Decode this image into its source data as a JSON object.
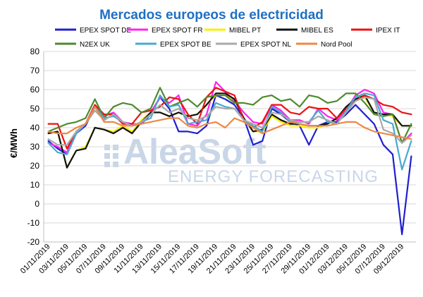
{
  "chart_data": {
    "type": "line",
    "title": "Mercados europeos de electricidad",
    "ylabel": "€/MWh",
    "xlabel": "",
    "ylim": [
      -20,
      80
    ],
    "yticks": [
      -20,
      -10,
      0,
      10,
      20,
      30,
      40,
      50,
      60,
      70,
      80
    ],
    "grid": true,
    "legend_position": "top",
    "watermark": {
      "brand": "AleaSoft",
      "tagline": "ENERGY FORECASTING",
      "color": "#c8d6e8"
    },
    "x_tick_labels": [
      "01/11/2019",
      "03/11/2019",
      "05/11/2019",
      "07/11/2019",
      "09/11/2019",
      "11/11/2019",
      "13/11/2019",
      "15/11/2019",
      "17/11/2019",
      "19/11/2019",
      "21/11/2019",
      "23/11/2019",
      "25/11/2019",
      "27/11/2019",
      "29/11/2019",
      "01/12/2019",
      "03/12/2019",
      "05/12/2019",
      "07/12/2019",
      "09/12/2019"
    ],
    "x": [
      "01/11/2019",
      "02/11/2019",
      "03/11/2019",
      "04/11/2019",
      "05/11/2019",
      "06/11/2019",
      "07/11/2019",
      "08/11/2019",
      "09/11/2019",
      "10/11/2019",
      "11/11/2019",
      "12/11/2019",
      "13/11/2019",
      "14/11/2019",
      "15/11/2019",
      "16/11/2019",
      "17/11/2019",
      "18/11/2019",
      "19/11/2019",
      "20/11/2019",
      "21/11/2019",
      "22/11/2019",
      "23/11/2019",
      "24/11/2019",
      "25/11/2019",
      "26/11/2019",
      "27/11/2019",
      "28/11/2019",
      "29/11/2019",
      "30/11/2019",
      "01/12/2019",
      "02/12/2019",
      "03/12/2019",
      "04/12/2019",
      "05/12/2019",
      "06/12/2019",
      "07/12/2019",
      "08/12/2019",
      "09/12/2019",
      "10/12/2019"
    ],
    "series": [
      {
        "name": "EPEX SPOT DE",
        "color": "#1f1fd0",
        "values": [
          33,
          29,
          26,
          37,
          41,
          51,
          44,
          47,
          43,
          41,
          42,
          47,
          56,
          50,
          38,
          38,
          37,
          41,
          57,
          55,
          52,
          45,
          31,
          33,
          50,
          47,
          43,
          41,
          31,
          41,
          43,
          43,
          47,
          52,
          47,
          42,
          31,
          26,
          -16,
          25
        ]
      },
      {
        "name": "EPEX SPOT FR",
        "color": "#ff22ee",
        "values": [
          32,
          30,
          27,
          38,
          42,
          52,
          46,
          48,
          43,
          42,
          42,
          48,
          56,
          53,
          57,
          42,
          41,
          47,
          64,
          59,
          54,
          48,
          43,
          42,
          52,
          49,
          44,
          44,
          42,
          50,
          46,
          44,
          49,
          57,
          60,
          58,
          48,
          47,
          32,
          37
        ]
      },
      {
        "name": "MIBEL PT",
        "color": "#f7f000",
        "values": [
          37,
          38,
          19,
          28,
          30,
          40,
          39,
          38,
          41,
          38,
          44,
          48,
          48,
          46,
          48,
          46,
          47,
          52,
          57,
          57,
          55,
          45,
          38,
          38,
          46,
          43,
          41,
          41,
          40,
          40,
          42,
          45,
          50,
          54,
          56,
          48,
          47,
          46,
          41,
          41
        ]
      },
      {
        "name": "MIBEL ES",
        "color": "#111111",
        "values": [
          37,
          38,
          19,
          28,
          29,
          40,
          39,
          37,
          40,
          37,
          43,
          48,
          48,
          46,
          48,
          46,
          47,
          52,
          58,
          58,
          55,
          45,
          38,
          39,
          47,
          44,
          42,
          42,
          41,
          41,
          42,
          45,
          51,
          55,
          57,
          48,
          47,
          47,
          41,
          41
        ]
      },
      {
        "name": "IPEX IT",
        "color": "#ee1111",
        "values": [
          42,
          42,
          29,
          38,
          42,
          52,
          47,
          47,
          42,
          42,
          48,
          49,
          51,
          56,
          55,
          47,
          42,
          56,
          61,
          59,
          57,
          44,
          40,
          43,
          52,
          52,
          48,
          47,
          51,
          50,
          50,
          45,
          50,
          54,
          57,
          55,
          52,
          51,
          48,
          47
        ]
      },
      {
        "name": "N2EX UK",
        "color": "#4e8a2e",
        "values": [
          38,
          40,
          42,
          43,
          45,
          55,
          45,
          51,
          53,
          52,
          48,
          50,
          61,
          51,
          53,
          55,
          51,
          56,
          57,
          57,
          53,
          53,
          52,
          56,
          57,
          54,
          55,
          51,
          57,
          56,
          53,
          54,
          58,
          58,
          53,
          47,
          46,
          47,
          32,
          42
        ]
      },
      {
        "name": "EPEX SPOT BE",
        "color": "#4aa9cf",
        "values": [
          32,
          27,
          26,
          37,
          42,
          51,
          45,
          46,
          43,
          41,
          43,
          45,
          57,
          51,
          52,
          42,
          43,
          44,
          53,
          51,
          50,
          44,
          41,
          38,
          51,
          48,
          43,
          43,
          43,
          49,
          43,
          42,
          49,
          56,
          58,
          57,
          44,
          42,
          18,
          33
        ]
      },
      {
        "name": "EPEX SPOT NL",
        "color": "#a9a9a9",
        "values": [
          34,
          31,
          31,
          38,
          42,
          49,
          44,
          47,
          43,
          41,
          43,
          47,
          52,
          48,
          50,
          45,
          44,
          46,
          51,
          50,
          50,
          44,
          42,
          40,
          48,
          47,
          44,
          43,
          43,
          46,
          44,
          42,
          48,
          54,
          56,
          55,
          39,
          37,
          32,
          36
        ]
      },
      {
        "name": "Nord Pool",
        "color": "#ee8844",
        "values": [
          38,
          37,
          37,
          40,
          42,
          51,
          43,
          43,
          41,
          41,
          42,
          43,
          44,
          45,
          45,
          41,
          40,
          42,
          43,
          40,
          45,
          43,
          40,
          37,
          39,
          41,
          43,
          42,
          41,
          41,
          41,
          42,
          43,
          43,
          40,
          38,
          37,
          36,
          35,
          34
        ]
      }
    ]
  }
}
